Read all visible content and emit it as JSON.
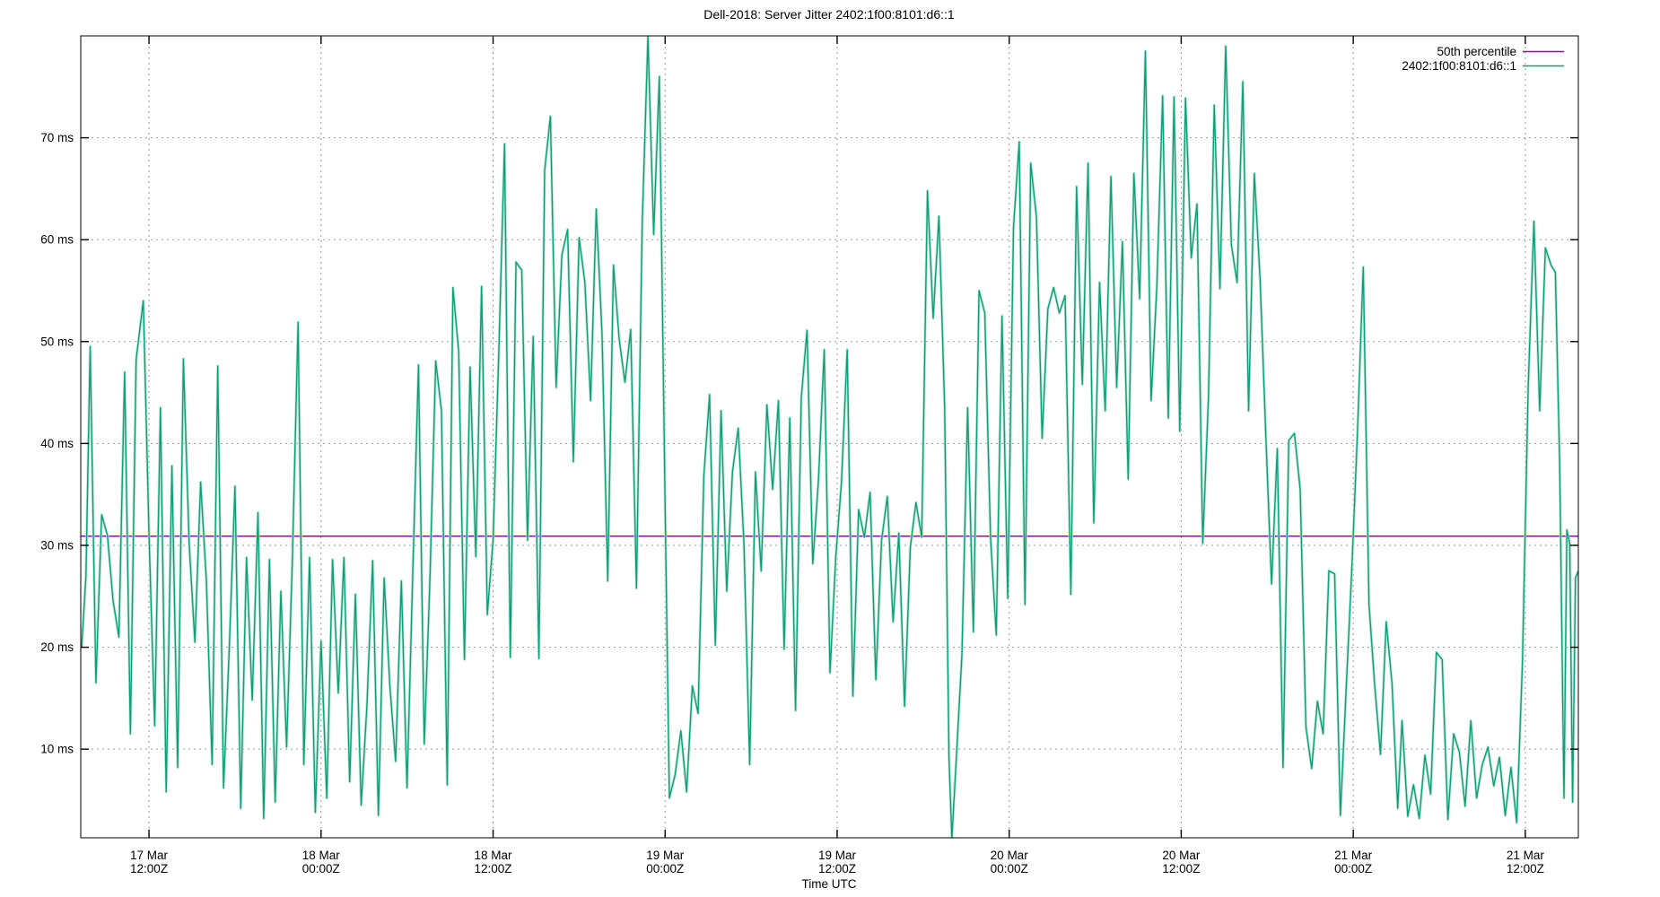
{
  "title": "Dell-2018: Server Jitter 2402:1f00:8101:d6::1",
  "xlabel": "Time UTC",
  "legend": [
    {
      "label": "50th percentile",
      "color": "#8806cc"
    },
    {
      "label": "2402:1f00:8101:d6::1",
      "color": "#0f9e76"
    }
  ],
  "colors": {
    "series_line": "#0f9e76",
    "series_halo": "#b5e4d5",
    "median_line": "#8806cc",
    "grid": "#9b9b9b",
    "frame": "#000000",
    "background": "#ffffff"
  },
  "chart_data": {
    "type": "line",
    "title": "Dell-2018: Server Jitter 2402:1f00:8101:d6::1",
    "xlabel": "Time UTC",
    "ylabel": "",
    "grid": true,
    "legend_position": "top-right-inside",
    "x_unit": "hours since 17 Mar 00:00 UTC",
    "xlim": [
      7.24,
      111.7
    ],
    "ylim": [
      1.3,
      80
    ],
    "y_ticks": [
      {
        "v": 10,
        "label": "10 ms"
      },
      {
        "v": 20,
        "label": "20 ms"
      },
      {
        "v": 30,
        "label": "30 ms"
      },
      {
        "v": 40,
        "label": "40 ms"
      },
      {
        "v": 50,
        "label": "50 ms"
      },
      {
        "v": 60,
        "label": "60 ms"
      },
      {
        "v": 70,
        "label": "70 ms"
      }
    ],
    "x_ticks": [
      {
        "t": 12,
        "label1": "17 Mar",
        "label2": "12:00Z"
      },
      {
        "t": 24,
        "label1": "18 Mar",
        "label2": "00:00Z"
      },
      {
        "t": 36,
        "label1": "18 Mar",
        "label2": "12:00Z"
      },
      {
        "t": 48,
        "label1": "19 Mar",
        "label2": "00:00Z"
      },
      {
        "t": 60,
        "label1": "19 Mar",
        "label2": "12:00Z"
      },
      {
        "t": 72,
        "label1": "20 Mar",
        "label2": "00:00Z"
      },
      {
        "t": 84,
        "label1": "20 Mar",
        "label2": "12:00Z"
      },
      {
        "t": 96,
        "label1": "21 Mar",
        "label2": "00:00Z"
      },
      {
        "t": 108,
        "label1": "21 Mar",
        "label2": "12:00Z"
      }
    ],
    "median": {
      "label": "50th percentile",
      "value_ms": 30.9,
      "color": "#8806cc"
    },
    "series": [
      {
        "name": "2402:1f00:8101:d6::1",
        "color": "#0f9e76",
        "unit": "ms",
        "points": [
          [
            7.3,
            20
          ],
          [
            7.6,
            27
          ],
          [
            7.9,
            49.5
          ],
          [
            8.3,
            16.5
          ],
          [
            8.7,
            33
          ],
          [
            9.1,
            31
          ],
          [
            9.5,
            24.5
          ],
          [
            9.9,
            21
          ],
          [
            10.3,
            47
          ],
          [
            10.7,
            11.5
          ],
          [
            11.1,
            48.2
          ],
          [
            11.6,
            54
          ],
          [
            12,
            31
          ],
          [
            12.4,
            12.3
          ],
          [
            12.8,
            43.5
          ],
          [
            13.2,
            5.8
          ],
          [
            13.6,
            37.8
          ],
          [
            14,
            8.2
          ],
          [
            14.4,
            48.3
          ],
          [
            14.8,
            30.2
          ],
          [
            15.2,
            20.5
          ],
          [
            15.6,
            36.2
          ],
          [
            16,
            26.5
          ],
          [
            16.4,
            8.5
          ],
          [
            16.8,
            47.6
          ],
          [
            17.2,
            6.2
          ],
          [
            17.6,
            19.8
          ],
          [
            18,
            35.8
          ],
          [
            18.4,
            4.2
          ],
          [
            18.8,
            28.8
          ],
          [
            19.2,
            14.8
          ],
          [
            19.6,
            33.2
          ],
          [
            20,
            3.2
          ],
          [
            20.4,
            28.6
          ],
          [
            20.8,
            4.8
          ],
          [
            21.2,
            25.5
          ],
          [
            21.6,
            10.2
          ],
          [
            22,
            28.5
          ],
          [
            22.4,
            51.9
          ],
          [
            22.8,
            8.5
          ],
          [
            23.2,
            28.8
          ],
          [
            23.6,
            3.8
          ],
          [
            24,
            20.6
          ],
          [
            24.4,
            5.2
          ],
          [
            24.8,
            28.6
          ],
          [
            25.2,
            15.5
          ],
          [
            25.6,
            28.8
          ],
          [
            26,
            6.8
          ],
          [
            26.4,
            25.2
          ],
          [
            26.8,
            4.5
          ],
          [
            27.2,
            14.2
          ],
          [
            27.6,
            28.5
          ],
          [
            28,
            3.5
          ],
          [
            28.4,
            26.8
          ],
          [
            28.8,
            16.2
          ],
          [
            29.2,
            8.8
          ],
          [
            29.6,
            26.5
          ],
          [
            30,
            6.2
          ],
          [
            30.4,
            27.2
          ],
          [
            30.8,
            47.7
          ],
          [
            31.2,
            10.5
          ],
          [
            31.6,
            26.8
          ],
          [
            32,
            48.1
          ],
          [
            32.4,
            43.2
          ],
          [
            32.8,
            6.5
          ],
          [
            33.2,
            55.3
          ],
          [
            33.6,
            49
          ],
          [
            34,
            18.8
          ],
          [
            34.4,
            47.5
          ],
          [
            34.8,
            28.9
          ],
          [
            35.2,
            55.4
          ],
          [
            35.6,
            23.2
          ],
          [
            36,
            30.5
          ],
          [
            36.4,
            48.9
          ],
          [
            36.8,
            69.4
          ],
          [
            37.2,
            19
          ],
          [
            37.6,
            57.8
          ],
          [
            38,
            57
          ],
          [
            38.4,
            30.5
          ],
          [
            38.8,
            50.5
          ],
          [
            39.2,
            18.9
          ],
          [
            39.6,
            66.8
          ],
          [
            40,
            72.1
          ],
          [
            40.4,
            45.5
          ],
          [
            40.8,
            58.5
          ],
          [
            41.2,
            61
          ],
          [
            41.6,
            38.2
          ],
          [
            42,
            60.2
          ],
          [
            42.4,
            55.8
          ],
          [
            42.8,
            44.2
          ],
          [
            43.2,
            63
          ],
          [
            43.6,
            50.8
          ],
          [
            44,
            26.5
          ],
          [
            44.4,
            57.5
          ],
          [
            44.8,
            50.2
          ],
          [
            45.2,
            46
          ],
          [
            45.6,
            51.2
          ],
          [
            46,
            25.8
          ],
          [
            46.4,
            61.5
          ],
          [
            46.8,
            79.9
          ],
          [
            47.2,
            60.5
          ],
          [
            47.6,
            76
          ],
          [
            48,
            34.2
          ],
          [
            48.3,
            5.2
          ],
          [
            48.7,
            7.5
          ],
          [
            49.1,
            11.8
          ],
          [
            49.5,
            5.8
          ],
          [
            49.9,
            16.2
          ],
          [
            50.3,
            13.5
          ],
          [
            50.7,
            36.8
          ],
          [
            51.1,
            44.8
          ],
          [
            51.5,
            20.2
          ],
          [
            51.9,
            43.2
          ],
          [
            52.3,
            25.5
          ],
          [
            52.7,
            37.2
          ],
          [
            53.1,
            41.5
          ],
          [
            53.5,
            30.2
          ],
          [
            53.9,
            8.5
          ],
          [
            54.3,
            37.2
          ],
          [
            54.7,
            27.5
          ],
          [
            55.1,
            43.8
          ],
          [
            55.5,
            35.5
          ],
          [
            55.9,
            44.2
          ],
          [
            56.3,
            19.8
          ],
          [
            56.7,
            42.5
          ],
          [
            57.1,
            13.8
          ],
          [
            57.5,
            44.5
          ],
          [
            57.9,
            51.1
          ],
          [
            58.3,
            28.2
          ],
          [
            58.7,
            36.5
          ],
          [
            59.1,
            49.2
          ],
          [
            59.5,
            17.5
          ],
          [
            59.9,
            28.8
          ],
          [
            60.3,
            36.2
          ],
          [
            60.7,
            49.2
          ],
          [
            61.1,
            15.2
          ],
          [
            61.5,
            33.5
          ],
          [
            61.9,
            30.8
          ],
          [
            62.3,
            35.2
          ],
          [
            62.7,
            16.8
          ],
          [
            63.1,
            30.5
          ],
          [
            63.5,
            34.8
          ],
          [
            63.9,
            22.5
          ],
          [
            64.3,
            31.2
          ],
          [
            64.7,
            14.2
          ],
          [
            65.1,
            29.8
          ],
          [
            65.5,
            34.2
          ],
          [
            65.9,
            30.8
          ],
          [
            66.3,
            64.8
          ],
          [
            66.7,
            52.3
          ],
          [
            67.1,
            62.3
          ],
          [
            67.5,
            43.5
          ],
          [
            67.8,
            9.2
          ],
          [
            68,
            1.2
          ],
          [
            68.3,
            8.8
          ],
          [
            68.7,
            19.2
          ],
          [
            69.1,
            43.5
          ],
          [
            69.5,
            21.5
          ],
          [
            69.9,
            55
          ],
          [
            70.3,
            52.8
          ],
          [
            70.7,
            30.8
          ],
          [
            71.1,
            21.2
          ],
          [
            71.5,
            52.5
          ],
          [
            71.9,
            24.8
          ],
          [
            72.3,
            61.2
          ],
          [
            72.7,
            69.6
          ],
          [
            73.1,
            24.2
          ],
          [
            73.5,
            67.5
          ],
          [
            73.9,
            62.2
          ],
          [
            74.3,
            40.5
          ],
          [
            74.7,
            53.2
          ],
          [
            75.1,
            55.3
          ],
          [
            75.5,
            52.8
          ],
          [
            75.9,
            54.5
          ],
          [
            76.3,
            25.2
          ],
          [
            76.7,
            65.2
          ],
          [
            77.1,
            45.8
          ],
          [
            77.5,
            67.5
          ],
          [
            77.9,
            32.2
          ],
          [
            78.3,
            55.8
          ],
          [
            78.7,
            43.2
          ],
          [
            79.1,
            66.2
          ],
          [
            79.5,
            45.5
          ],
          [
            79.9,
            59.8
          ],
          [
            80.3,
            36.5
          ],
          [
            80.7,
            66.5
          ],
          [
            81.1,
            54.2
          ],
          [
            81.5,
            78.5
          ],
          [
            81.9,
            44.2
          ],
          [
            82.3,
            55.5
          ],
          [
            82.7,
            74.1
          ],
          [
            83.1,
            42.5
          ],
          [
            83.5,
            74
          ],
          [
            83.9,
            41.2
          ],
          [
            84.3,
            73.9
          ],
          [
            84.7,
            58.2
          ],
          [
            85.1,
            63.5
          ],
          [
            85.5,
            30.2
          ],
          [
            85.9,
            44.5
          ],
          [
            86.3,
            73.2
          ],
          [
            86.7,
            55.2
          ],
          [
            87.1,
            79
          ],
          [
            87.5,
            59.5
          ],
          [
            87.9,
            55.8
          ],
          [
            88.3,
            75.5
          ],
          [
            88.7,
            43.2
          ],
          [
            89.1,
            66.5
          ],
          [
            89.5,
            56.2
          ],
          [
            89.9,
            40.8
          ],
          [
            90.3,
            26.2
          ],
          [
            90.7,
            39.5
          ],
          [
            91.1,
            8.2
          ],
          [
            91.5,
            40.3
          ],
          [
            91.9,
            41
          ],
          [
            92.3,
            35.5
          ],
          [
            92.7,
            12.2
          ],
          [
            93.1,
            8.1
          ],
          [
            93.5,
            14.7
          ],
          [
            93.9,
            11.5
          ],
          [
            94.3,
            27.5
          ],
          [
            94.7,
            27.2
          ],
          [
            95.1,
            3.5
          ],
          [
            95.5,
            15.8
          ],
          [
            95.9,
            27.8
          ],
          [
            96.3,
            41.2
          ],
          [
            96.7,
            57.3
          ],
          [
            97.1,
            24.2
          ],
          [
            97.5,
            16.2
          ],
          [
            97.9,
            9.5
          ],
          [
            98.3,
            22.5
          ],
          [
            98.7,
            16.5
          ],
          [
            99.1,
            4.2
          ],
          [
            99.4,
            12.8
          ],
          [
            99.8,
            3.4
          ],
          [
            100.2,
            6.5
          ],
          [
            100.6,
            3.2
          ],
          [
            101,
            9.4
          ],
          [
            101.4,
            5.6
          ],
          [
            101.8,
            19.5
          ],
          [
            102.2,
            18.8
          ],
          [
            102.6,
            3.1
          ],
          [
            103,
            11.5
          ],
          [
            103.4,
            9.7
          ],
          [
            103.8,
            4.4
          ],
          [
            104.2,
            12.8
          ],
          [
            104.6,
            5.2
          ],
          [
            105,
            8.5
          ],
          [
            105.4,
            10.2
          ],
          [
            105.8,
            6.4
          ],
          [
            106.2,
            9.2
          ],
          [
            106.6,
            3.5
          ],
          [
            107,
            8.2
          ],
          [
            107.4,
            2.8
          ],
          [
            107.8,
            18.5
          ],
          [
            108.2,
            45.5
          ],
          [
            108.6,
            61.8
          ],
          [
            109,
            43.2
          ],
          [
            109.4,
            59.2
          ],
          [
            109.8,
            57.5
          ],
          [
            110.1,
            56.8
          ],
          [
            110.4,
            38
          ],
          [
            110.7,
            5.2
          ],
          [
            110.9,
            31.5
          ],
          [
            111.1,
            30.2
          ],
          [
            111.3,
            4.8
          ],
          [
            111.5,
            26.8
          ],
          [
            111.7,
            27.5
          ]
        ]
      }
    ]
  }
}
